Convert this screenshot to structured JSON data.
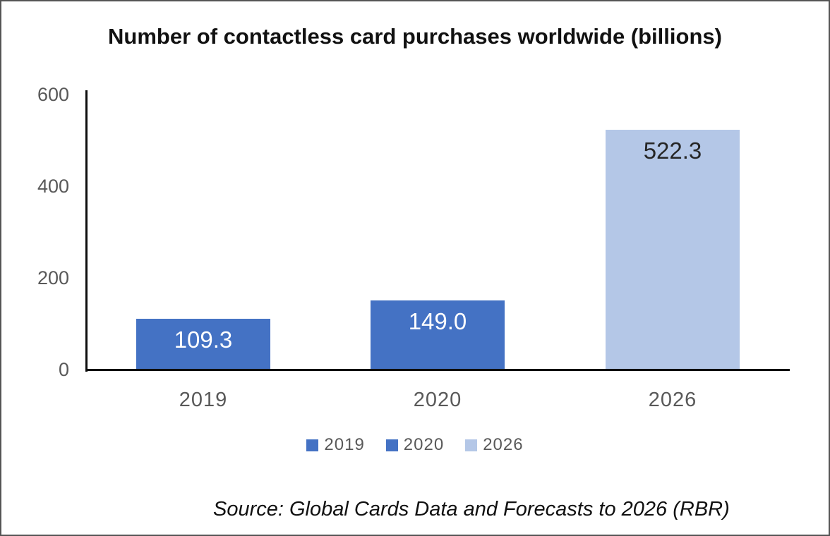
{
  "chart": {
    "title": "Number of contactless card purchases worldwide (billions)",
    "source": "Source: Global Cards Data and Forecasts to 2026 (RBR)"
  },
  "chart_data": {
    "type": "bar",
    "title": "Number of contactless card purchases worldwide (billions)",
    "categories": [
      "2019",
      "2020",
      "2026"
    ],
    "values": [
      109.3,
      149.0,
      522.3
    ],
    "value_labels": [
      "109.3",
      "149.0",
      "522.3"
    ],
    "bar_colors": [
      "#4472C4",
      "#4472C4",
      "#B4C7E7"
    ],
    "value_label_colors": [
      "#FFFFFF",
      "#FFFFFF",
      "#262626"
    ],
    "xlabel": "",
    "ylabel": "",
    "ylim": [
      0,
      600
    ],
    "yticks": [
      0,
      200,
      400,
      600
    ],
    "grid": false,
    "legend": {
      "position": "bottom",
      "entries": [
        {
          "label": "2019",
          "color": "#4472C4"
        },
        {
          "label": "2020",
          "color": "#4472C4"
        },
        {
          "label": "2026",
          "color": "#B4C7E7"
        }
      ]
    },
    "source_note": "Source: Global Cards Data and Forecasts to 2026 (RBR)",
    "colors": {
      "axis_line": "#0D0D0D",
      "tick_label": "#595959",
      "title_text": "#111111",
      "frame_border": "#555555",
      "background": "#FFFFFF"
    }
  }
}
